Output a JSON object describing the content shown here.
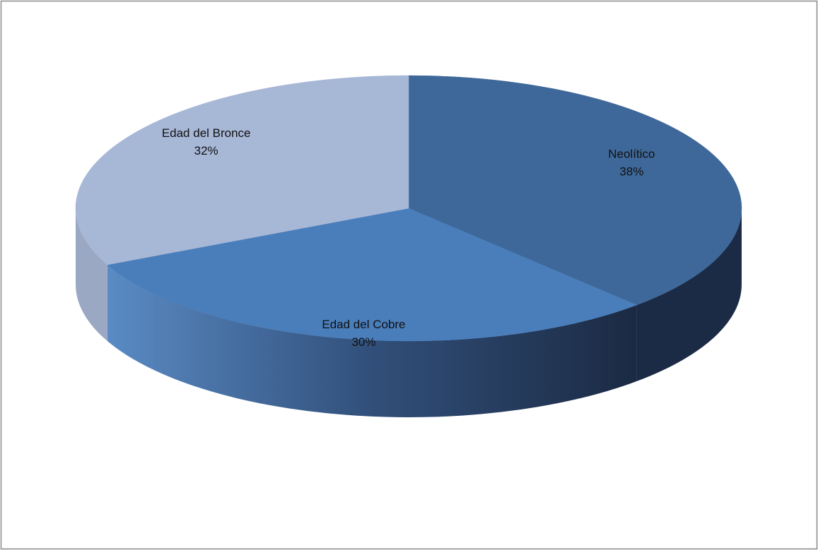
{
  "chart_data": {
    "type": "pie",
    "categories": [
      "Neolítico",
      "Edad del Cobre",
      "Edad del Bronce"
    ],
    "values": [
      38,
      30,
      32
    ],
    "value_labels": [
      "38%",
      "30%",
      "32%"
    ],
    "colors": [
      "#3e6899",
      "#4a7ebb",
      "#a7b7d6"
    ]
  }
}
